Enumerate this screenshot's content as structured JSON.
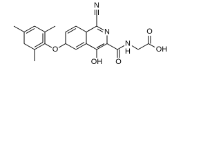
{
  "atoms": [
    "N",
    "N",
    "N",
    "H",
    "O",
    "O",
    "OH",
    "O",
    "OH"
  ]
}
